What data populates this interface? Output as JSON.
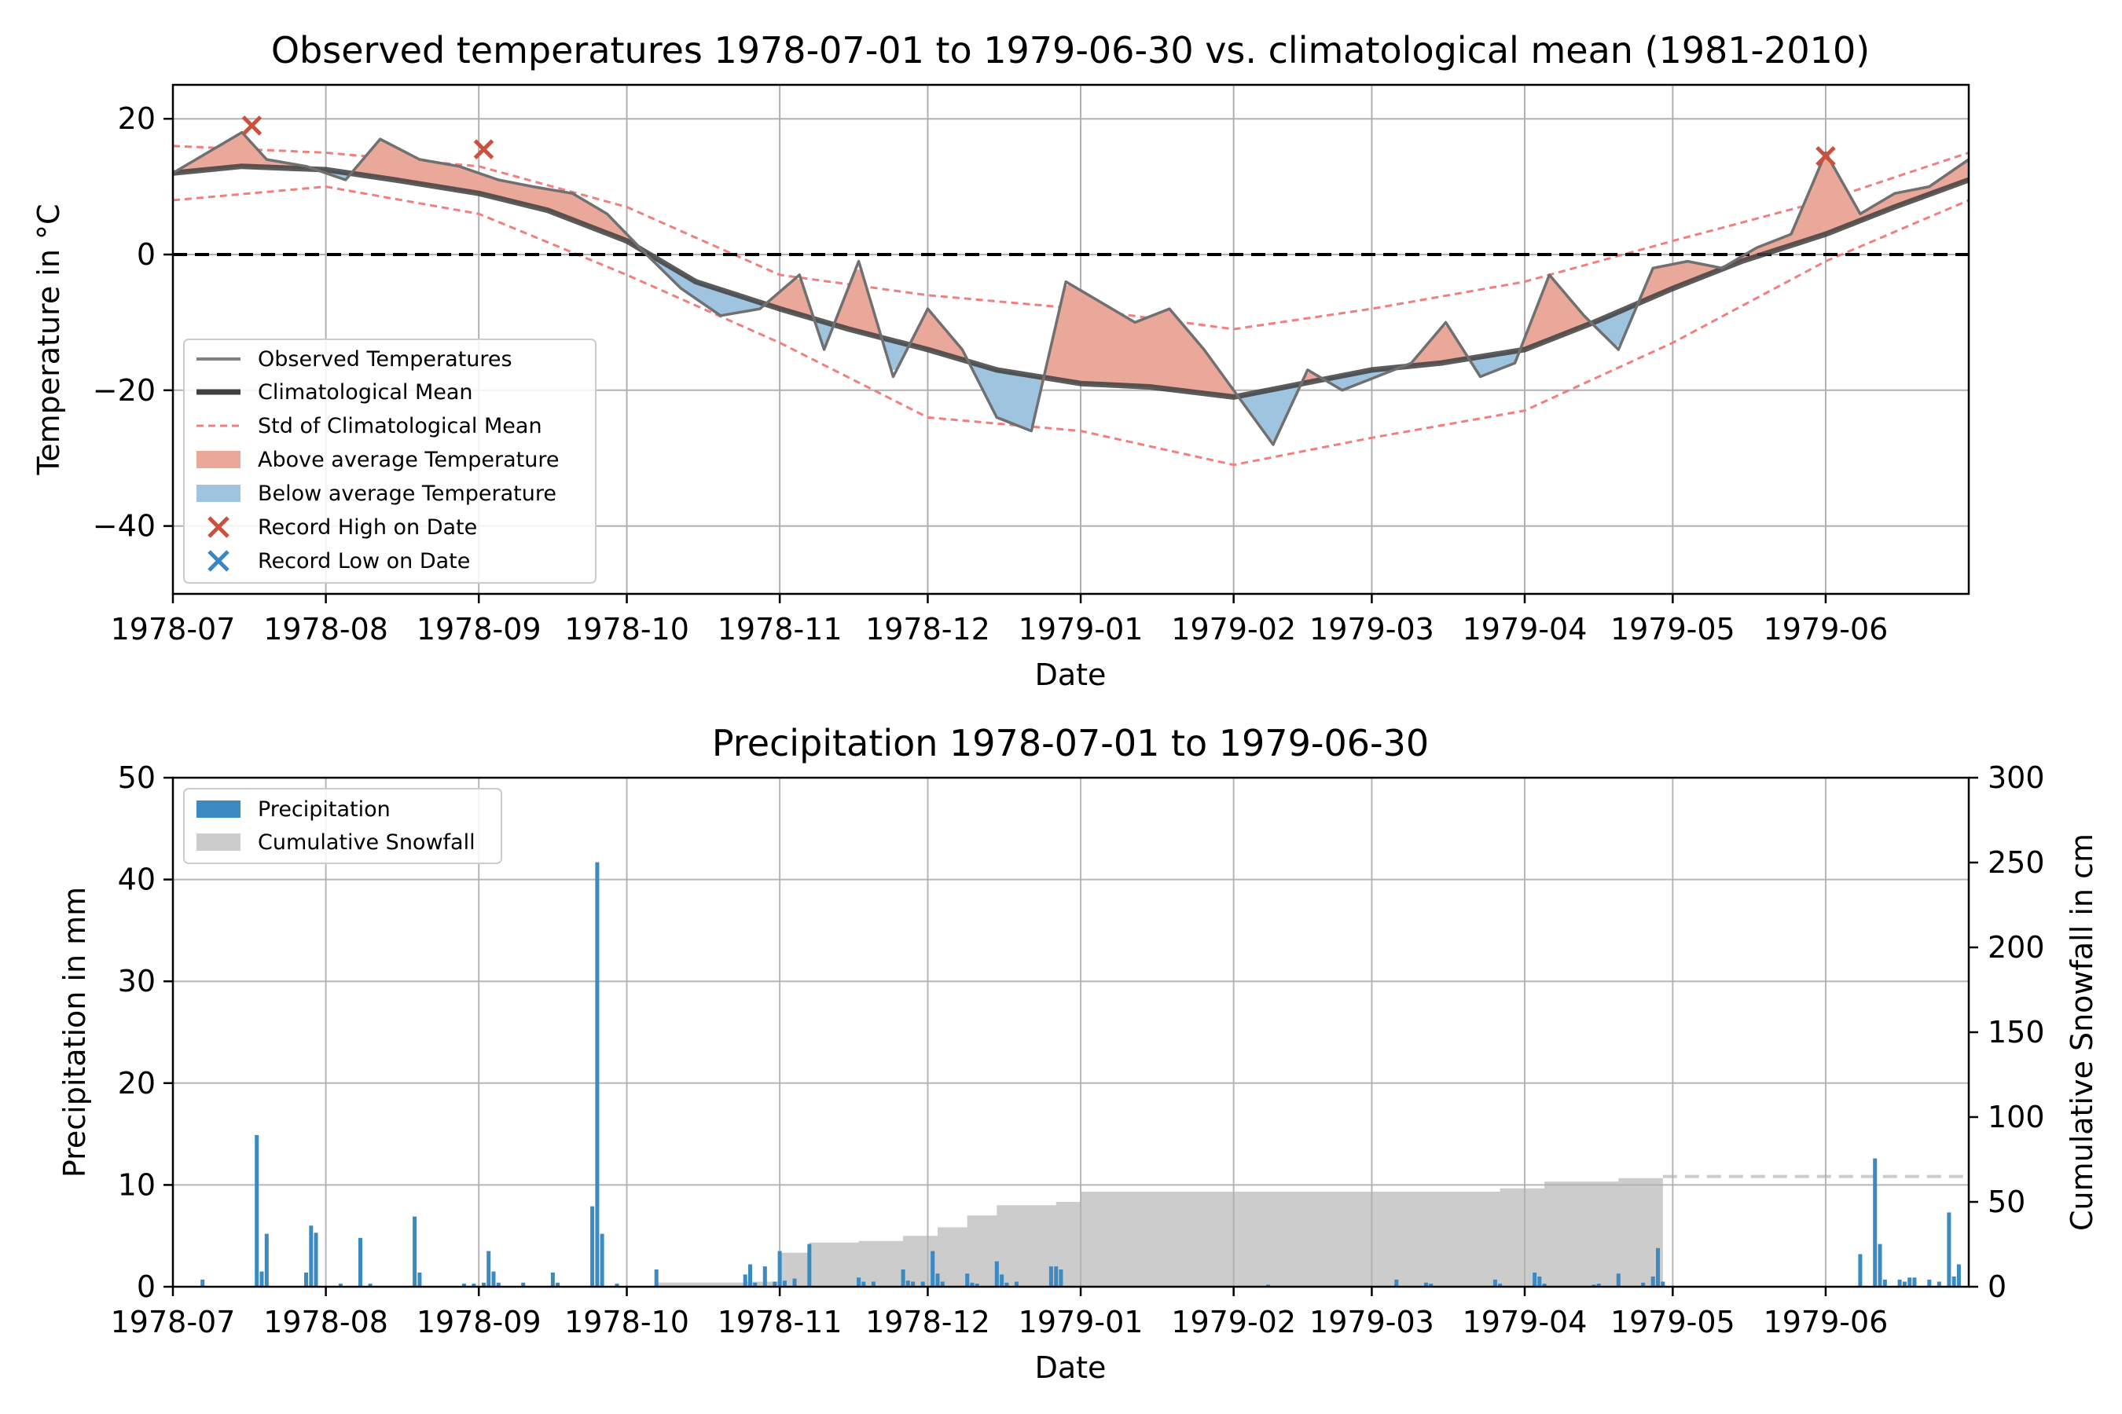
{
  "chart_data": [
    {
      "type": "line",
      "title": "Observed temperatures 1978-07-01 to 1979-06-30 vs. climatological mean (1981-2010)",
      "xlabel": "Date",
      "ylabel": "Temperature in °C",
      "xlim": [
        "1978-07-01",
        "1979-06-30"
      ],
      "ylim": [
        -50,
        25
      ],
      "x_ticks": [
        "1978-07",
        "1978-08",
        "1978-09",
        "1978-10",
        "1978-11",
        "1978-12",
        "1979-01",
        "1979-02",
        "1979-03",
        "1979-04",
        "1979-05",
        "1979-06"
      ],
      "y_ticks": [
        20,
        0,
        -20,
        -40
      ],
      "grid": true,
      "legend_position": "lower-left",
      "legend": [
        {
          "label": "Observed Temperatures",
          "kind": "line",
          "color": "#808080"
        },
        {
          "label": "Climatological Mean",
          "kind": "line",
          "color": "#404040"
        },
        {
          "label": "Std of Climatological Mean",
          "kind": "dashed",
          "color": "#f08080"
        },
        {
          "label": "Above average Temperature",
          "kind": "patch",
          "color": "#e9a89a"
        },
        {
          "label": "Below average Temperature",
          "kind": "patch",
          "color": "#9fc4e0"
        },
        {
          "label": "Record High on Date",
          "kind": "marker",
          "color": "#c9513e"
        },
        {
          "label": "Record Low on Date",
          "kind": "marker",
          "color": "#3b85c4"
        }
      ],
      "series": [
        {
          "name": "Climatological Mean",
          "x": [
            "1978-07-01",
            "1978-07-15",
            "1978-08-01",
            "1978-08-15",
            "1978-09-01",
            "1978-09-15",
            "1978-10-01",
            "1978-10-15",
            "1978-11-01",
            "1978-11-15",
            "1978-12-01",
            "1978-12-15",
            "1979-01-01",
            "1979-01-15",
            "1979-02-01",
            "1979-02-15",
            "1979-03-01",
            "1979-03-15",
            "1979-04-01",
            "1979-04-15",
            "1979-05-01",
            "1979-05-15",
            "1979-06-01",
            "1979-06-15",
            "1979-06-30"
          ],
          "values": [
            12,
            13,
            12.5,
            11,
            9,
            6.5,
            2,
            -4,
            -8,
            -11,
            -14,
            -17,
            -19,
            -19.5,
            -21,
            -19,
            -17,
            -16,
            -14,
            -10,
            -5,
            -1,
            3,
            7,
            11
          ]
        },
        {
          "name": "Observed Temperatures",
          "x": [
            "1978-07-01",
            "1978-07-08",
            "1978-07-15",
            "1978-07-20",
            "1978-07-28",
            "1978-08-05",
            "1978-08-12",
            "1978-08-20",
            "1978-08-28",
            "1978-09-05",
            "1978-09-12",
            "1978-09-20",
            "1978-09-27",
            "1978-10-05",
            "1978-10-12",
            "1978-10-20",
            "1978-10-28",
            "1978-11-05",
            "1978-11-10",
            "1978-11-17",
            "1978-11-24",
            "1978-12-01",
            "1978-12-08",
            "1978-12-15",
            "1978-12-22",
            "1978-12-29",
            "1979-01-05",
            "1979-01-12",
            "1979-01-19",
            "1979-01-26",
            "1979-02-02",
            "1979-02-09",
            "1979-02-16",
            "1979-02-23",
            "1979-03-02",
            "1979-03-09",
            "1979-03-16",
            "1979-03-23",
            "1979-03-30",
            "1979-04-06",
            "1979-04-13",
            "1979-04-20",
            "1979-04-27",
            "1979-05-04",
            "1979-05-11",
            "1979-05-18",
            "1979-05-25",
            "1979-06-01",
            "1979-06-08",
            "1979-06-15",
            "1979-06-22",
            "1979-06-30"
          ],
          "values": [
            12,
            15,
            18,
            14,
            13,
            11,
            17,
            14,
            13,
            11,
            10,
            9,
            6,
            0,
            -5,
            -9,
            -8,
            -3,
            -14,
            -1,
            -18,
            -8,
            -14,
            -24,
            -26,
            -4,
            -7,
            -10,
            -8,
            -14,
            -21,
            -28,
            -17,
            -20,
            -18,
            -16,
            -10,
            -18,
            -16,
            -3,
            -9,
            -14,
            -2,
            -1,
            -2,
            1,
            3,
            15,
            6,
            9,
            10,
            14
          ]
        },
        {
          "name": "Std of Climatological Mean",
          "x": [
            "1978-07-01",
            "1978-08-01",
            "1978-09-01",
            "1978-10-01",
            "1978-11-01",
            "1978-12-01",
            "1979-01-01",
            "1979-02-01",
            "1979-03-01",
            "1979-04-01",
            "1979-05-01",
            "1979-06-01",
            "1979-06-30"
          ],
          "upper": [
            16,
            15,
            13,
            7,
            -3,
            -6,
            -8,
            -11,
            -8,
            -4,
            2,
            8,
            15
          ],
          "lower": [
            8,
            10,
            6,
            -3,
            -13,
            -24,
            -26,
            -31,
            -27,
            -23,
            -13,
            -1,
            8
          ]
        }
      ],
      "annotations": [
        {
          "type": "record_high",
          "x": "1978-07-17",
          "y": 19
        },
        {
          "type": "record_high",
          "x": "1978-09-02",
          "y": 15.5
        },
        {
          "type": "record_high",
          "x": "1979-06-01",
          "y": 14.5
        }
      ]
    },
    {
      "type": "bar",
      "title": "Precipitation 1978-07-01 to 1979-06-30",
      "xlabel": "Date",
      "ylabel": "Precipitation in mm",
      "y2label": "Cumulative Snowfall in cm",
      "xlim": [
        "1978-07-01",
        "1979-06-30"
      ],
      "ylim": [
        0,
        50
      ],
      "y2lim": [
        0,
        300
      ],
      "x_ticks": [
        "1978-07",
        "1978-08",
        "1978-09",
        "1978-10",
        "1978-11",
        "1978-12",
        "1979-01",
        "1979-02",
        "1979-03",
        "1979-04",
        "1979-05",
        "1979-06"
      ],
      "y_ticks": [
        0,
        10,
        20,
        30,
        40,
        50
      ],
      "y2_ticks": [
        0,
        50,
        100,
        150,
        200,
        250,
        300
      ],
      "grid": true,
      "legend_position": "upper-left",
      "legend": [
        {
          "label": "Precipitation",
          "kind": "patch",
          "color": "#3b8bc2"
        },
        {
          "label": "Cumulative Snowfall",
          "kind": "patch",
          "color": "#cccccc"
        }
      ],
      "series": [
        {
          "name": "Precipitation",
          "x": [
            "1978-07-07",
            "1978-07-18",
            "1978-07-19",
            "1978-07-20",
            "1978-07-28",
            "1978-07-29",
            "1978-07-30",
            "1978-08-04",
            "1978-08-08",
            "1978-08-10",
            "1978-08-19",
            "1978-08-20",
            "1978-08-29",
            "1978-08-31",
            "1978-09-02",
            "1978-09-03",
            "1978-09-04",
            "1978-09-05",
            "1978-09-10",
            "1978-09-16",
            "1978-09-17",
            "1978-09-24",
            "1978-09-25",
            "1978-09-26",
            "1978-09-29",
            "1978-10-07",
            "1978-10-25",
            "1978-10-26",
            "1978-10-27",
            "1978-10-29",
            "1978-10-31",
            "1978-11-01",
            "1978-11-02",
            "1978-11-04",
            "1978-11-07",
            "1978-11-17",
            "1978-11-18",
            "1978-11-20",
            "1978-11-26",
            "1978-11-27",
            "1978-11-28",
            "1978-11-30",
            "1978-12-02",
            "1978-12-03",
            "1978-12-04",
            "1978-12-09",
            "1978-12-10",
            "1978-12-11",
            "1978-12-15",
            "1978-12-16",
            "1978-12-17",
            "1978-12-19",
            "1978-12-26",
            "1978-12-27",
            "1978-12-28",
            "1979-02-08",
            "1979-03-06",
            "1979-03-12",
            "1979-03-13",
            "1979-03-26",
            "1979-03-27",
            "1979-04-03",
            "1979-04-04",
            "1979-04-05",
            "1979-04-15",
            "1979-04-16",
            "1979-04-20",
            "1979-04-25",
            "1979-04-27",
            "1979-04-28",
            "1979-04-29",
            "1979-06-08",
            "1979-06-11",
            "1979-06-12",
            "1979-06-13",
            "1979-06-16",
            "1979-06-17",
            "1979-06-18",
            "1979-06-19",
            "1979-06-22",
            "1979-06-24",
            "1979-06-26",
            "1979-06-27",
            "1979-06-28"
          ],
          "values": [
            0.7,
            14.9,
            1.5,
            5.2,
            1.4,
            6,
            5.3,
            0.3,
            4.8,
            0.3,
            6.9,
            1.4,
            0.3,
            0.3,
            0.4,
            3.5,
            1.5,
            0.4,
            0.4,
            1.4,
            0.4,
            7.9,
            41.7,
            5.2,
            0.3,
            1.7,
            1.2,
            2.2,
            0.4,
            2,
            0.5,
            3.5,
            0.6,
            0.8,
            4.2,
            0.9,
            0.5,
            0.5,
            1.7,
            0.6,
            0.5,
            0.5,
            3.5,
            1.3,
            0.5,
            1.3,
            0.4,
            0.3,
            2.5,
            1.2,
            0.4,
            0.5,
            2,
            2,
            1.7,
            0.2,
            0.7,
            0.4,
            0.3,
            0.7,
            0.3,
            1.4,
            1,
            0.3,
            0.2,
            0.3,
            1.3,
            0.4,
            1,
            3.8,
            0.5,
            3.2,
            12.6,
            4.2,
            0.7,
            0.7,
            0.5,
            0.9,
            0.9,
            0.7,
            0.5,
            7.3,
            1,
            2.2
          ]
        },
        {
          "name": "Cumulative Snowfall",
          "x": [
            "1978-10-07",
            "1978-10-25",
            "1978-11-01",
            "1978-11-07",
            "1978-11-17",
            "1978-11-26",
            "1978-12-03",
            "1978-12-09",
            "1978-12-15",
            "1978-12-27",
            "1979-01-01",
            "1979-03-05",
            "1979-03-27",
            "1979-04-05",
            "1979-04-20",
            "1979-04-29"
          ],
          "values": [
            2.5,
            3,
            20,
            26,
            27,
            30,
            35,
            42,
            48,
            50,
            56,
            56,
            58,
            62,
            64,
            65
          ]
        },
        {
          "name": "Cumulative Snowfall (continued)",
          "x": [
            "1979-04-29",
            "1979-06-30"
          ],
          "values": [
            65,
            65
          ]
        }
      ]
    }
  ]
}
